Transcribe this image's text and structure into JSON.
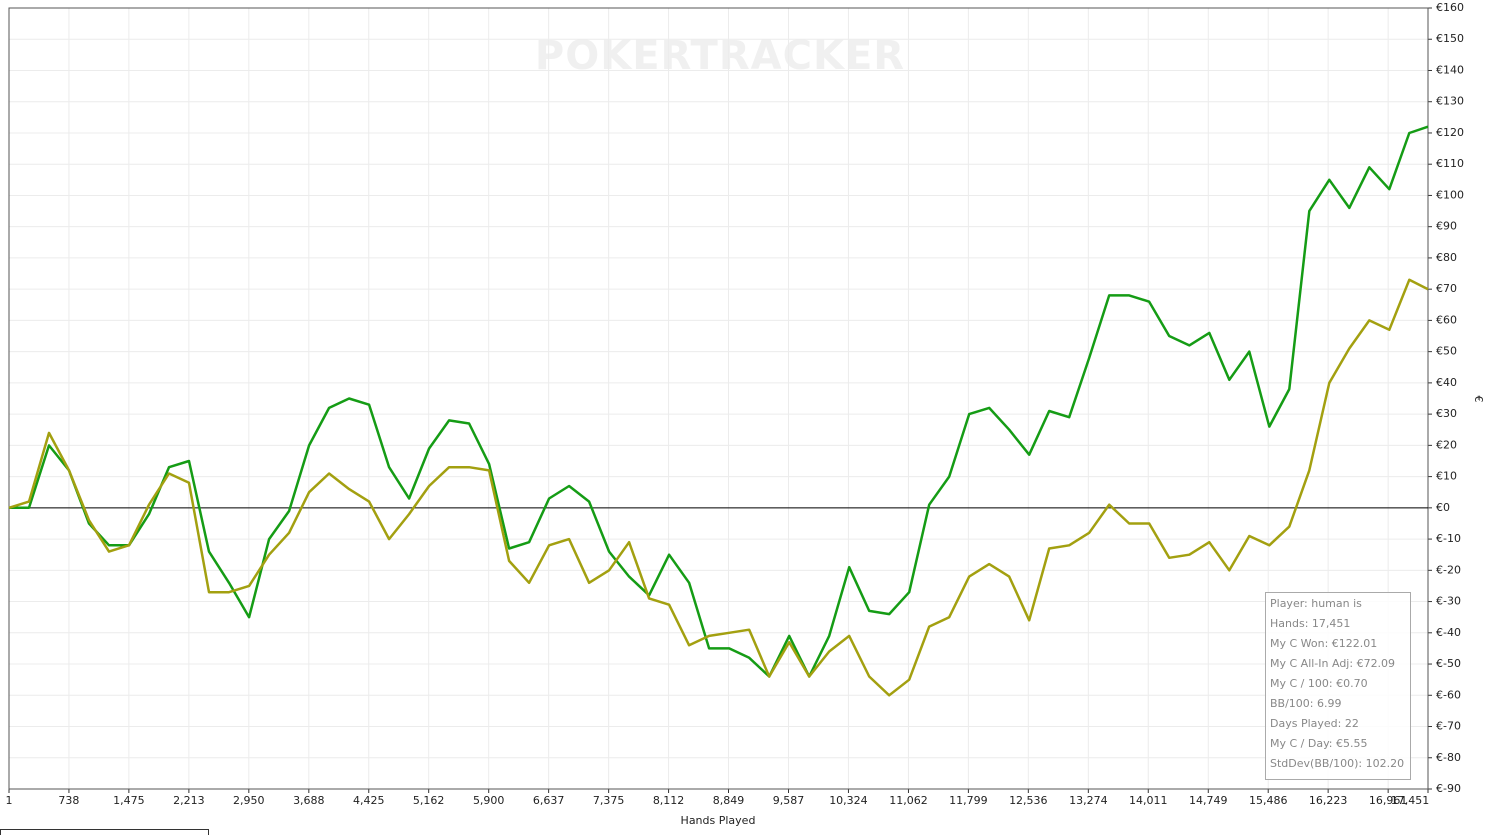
{
  "chart_data": {
    "type": "line",
    "watermark": "POKERTRACKER",
    "x_label": "Hands Played",
    "y_label": "€",
    "xlim": [
      1,
      17451
    ],
    "ylim": [
      -90,
      160
    ],
    "grid": true,
    "xticks": [
      1,
      738,
      {
        "value": 1475,
        "label": "1,475"
      },
      {
        "value": 2213,
        "label": "2,213"
      },
      {
        "value": 2950,
        "label": "2,950"
      },
      {
        "value": 3688,
        "label": "3,688"
      },
      {
        "value": 4425,
        "label": "4,425"
      },
      {
        "value": 5162,
        "label": "5,162"
      },
      {
        "value": 5900,
        "label": "5,900"
      },
      {
        "value": 6637,
        "label": "6,637"
      },
      {
        "value": 7375,
        "label": "7,375"
      },
      {
        "value": 8112,
        "label": "8,112"
      },
      {
        "value": 8849,
        "label": "8,849"
      },
      {
        "value": 9587,
        "label": "9,587"
      },
      {
        "value": 10324,
        "label": "10,324"
      },
      {
        "value": 11062,
        "label": "11,062"
      },
      {
        "value": 11799,
        "label": "11,799"
      },
      {
        "value": 12536,
        "label": "12,536"
      },
      {
        "value": 13274,
        "label": "13,274"
      },
      {
        "value": 14011,
        "label": "14,011"
      },
      {
        "value": 14749,
        "label": "14,749"
      },
      {
        "value": 15486,
        "label": "15,486"
      },
      {
        "value": 16223,
        "label": "16,223"
      },
      {
        "value": 16961,
        "label": "16,961"
      },
      {
        "value": 17451,
        "label": "17,451"
      }
    ],
    "yticks": [
      {
        "value": -90,
        "label": "€-90"
      },
      {
        "value": -80,
        "label": "€-80"
      },
      {
        "value": -70,
        "label": "€-70"
      },
      {
        "value": -60,
        "label": "€-60"
      },
      {
        "value": -50,
        "label": "€-50"
      },
      {
        "value": -40,
        "label": "€-40"
      },
      {
        "value": -30,
        "label": "€-30"
      },
      {
        "value": -20,
        "label": "€-20"
      },
      {
        "value": -10,
        "label": "€-10"
      },
      {
        "value": 0,
        "label": "€0"
      },
      {
        "value": 10,
        "label": "€10"
      },
      {
        "value": 20,
        "label": "€20"
      },
      {
        "value": 30,
        "label": "€30"
      },
      {
        "value": 40,
        "label": "€40"
      },
      {
        "value": 50,
        "label": "€50"
      },
      {
        "value": 60,
        "label": "€60"
      },
      {
        "value": 70,
        "label": "€70"
      },
      {
        "value": 80,
        "label": "€80"
      },
      {
        "value": 90,
        "label": "€90"
      },
      {
        "value": 100,
        "label": "€100"
      },
      {
        "value": 110,
        "label": "€110"
      },
      {
        "value": 120,
        "label": "€120"
      },
      {
        "value": 130,
        "label": "€130"
      },
      {
        "value": 140,
        "label": "€140"
      },
      {
        "value": 150,
        "label": "€150"
      },
      {
        "value": 160,
        "label": "€160"
      }
    ],
    "x": [
      1,
      247,
      493,
      739,
      985,
      1231,
      1477,
      1723,
      1969,
      2215,
      2461,
      2707,
      2953,
      3199,
      3445,
      3691,
      3937,
      4183,
      4429,
      4675,
      4921,
      5167,
      5413,
      5659,
      5905,
      6151,
      6397,
      6643,
      6889,
      7135,
      7381,
      7627,
      7873,
      8119,
      8365,
      8611,
      8857,
      9103,
      9349,
      9595,
      9841,
      10087,
      10333,
      10579,
      10825,
      11071,
      11317,
      11563,
      11809,
      12055,
      12301,
      12547,
      12793,
      13039,
      13285,
      13531,
      13777,
      14023,
      14269,
      14515,
      14761,
      15007,
      15253,
      15499,
      15745,
      15991,
      16237,
      16483,
      16729,
      16975,
      17221,
      17451
    ],
    "series": [
      {
        "color": "#159c15",
        "values": [
          0,
          0,
          20,
          12,
          -5,
          -12,
          -12,
          -2,
          13,
          15,
          -14,
          -24,
          -35,
          -10,
          -1,
          20,
          32,
          35,
          33,
          13,
          3,
          19,
          28,
          27,
          14,
          -13,
          -11,
          3,
          7,
          2,
          -14,
          -22,
          -28,
          -15,
          -24,
          -45,
          -45,
          -48,
          -54,
          -41,
          -54,
          -41,
          -19,
          -33,
          -34,
          -27,
          1,
          10,
          30,
          32,
          25,
          17,
          31,
          29,
          48,
          68,
          68,
          66,
          55,
          52,
          56,
          41,
          50,
          26,
          38,
          95,
          105,
          96,
          109,
          102,
          120,
          122
        ]
      },
      {
        "color": "#a3a010",
        "values": [
          0,
          2,
          24,
          12,
          -4,
          -14,
          -12,
          1,
          11,
          8,
          -27,
          -27,
          -25,
          -15,
          -8,
          5,
          11,
          6,
          2,
          -10,
          -2,
          7,
          13,
          13,
          12,
          -17,
          -24,
          -12,
          -10,
          -24,
          -20,
          -11,
          -29,
          -31,
          -44,
          -41,
          -40,
          -39,
          -54,
          -43,
          -54,
          -46,
          -41,
          -54,
          -60,
          -55,
          -38,
          -35,
          -22,
          -18,
          -22,
          -36,
          -13,
          -12,
          -8,
          1,
          -5,
          -5,
          -16,
          -15,
          -11,
          -20,
          -9,
          -12,
          -6,
          12,
          40,
          51,
          60,
          57,
          73,
          70
        ]
      }
    ],
    "info": [
      "Player: human is",
      "Hands: 17,451",
      "My C Won: €122.01",
      "My C All-In Adj: €72.09",
      "My C / 100: €0.70",
      "BB/100: 6.99",
      "Days Played: 22",
      "My C / Day: €5.55",
      "StdDev(BB/100): 102.20"
    ]
  }
}
